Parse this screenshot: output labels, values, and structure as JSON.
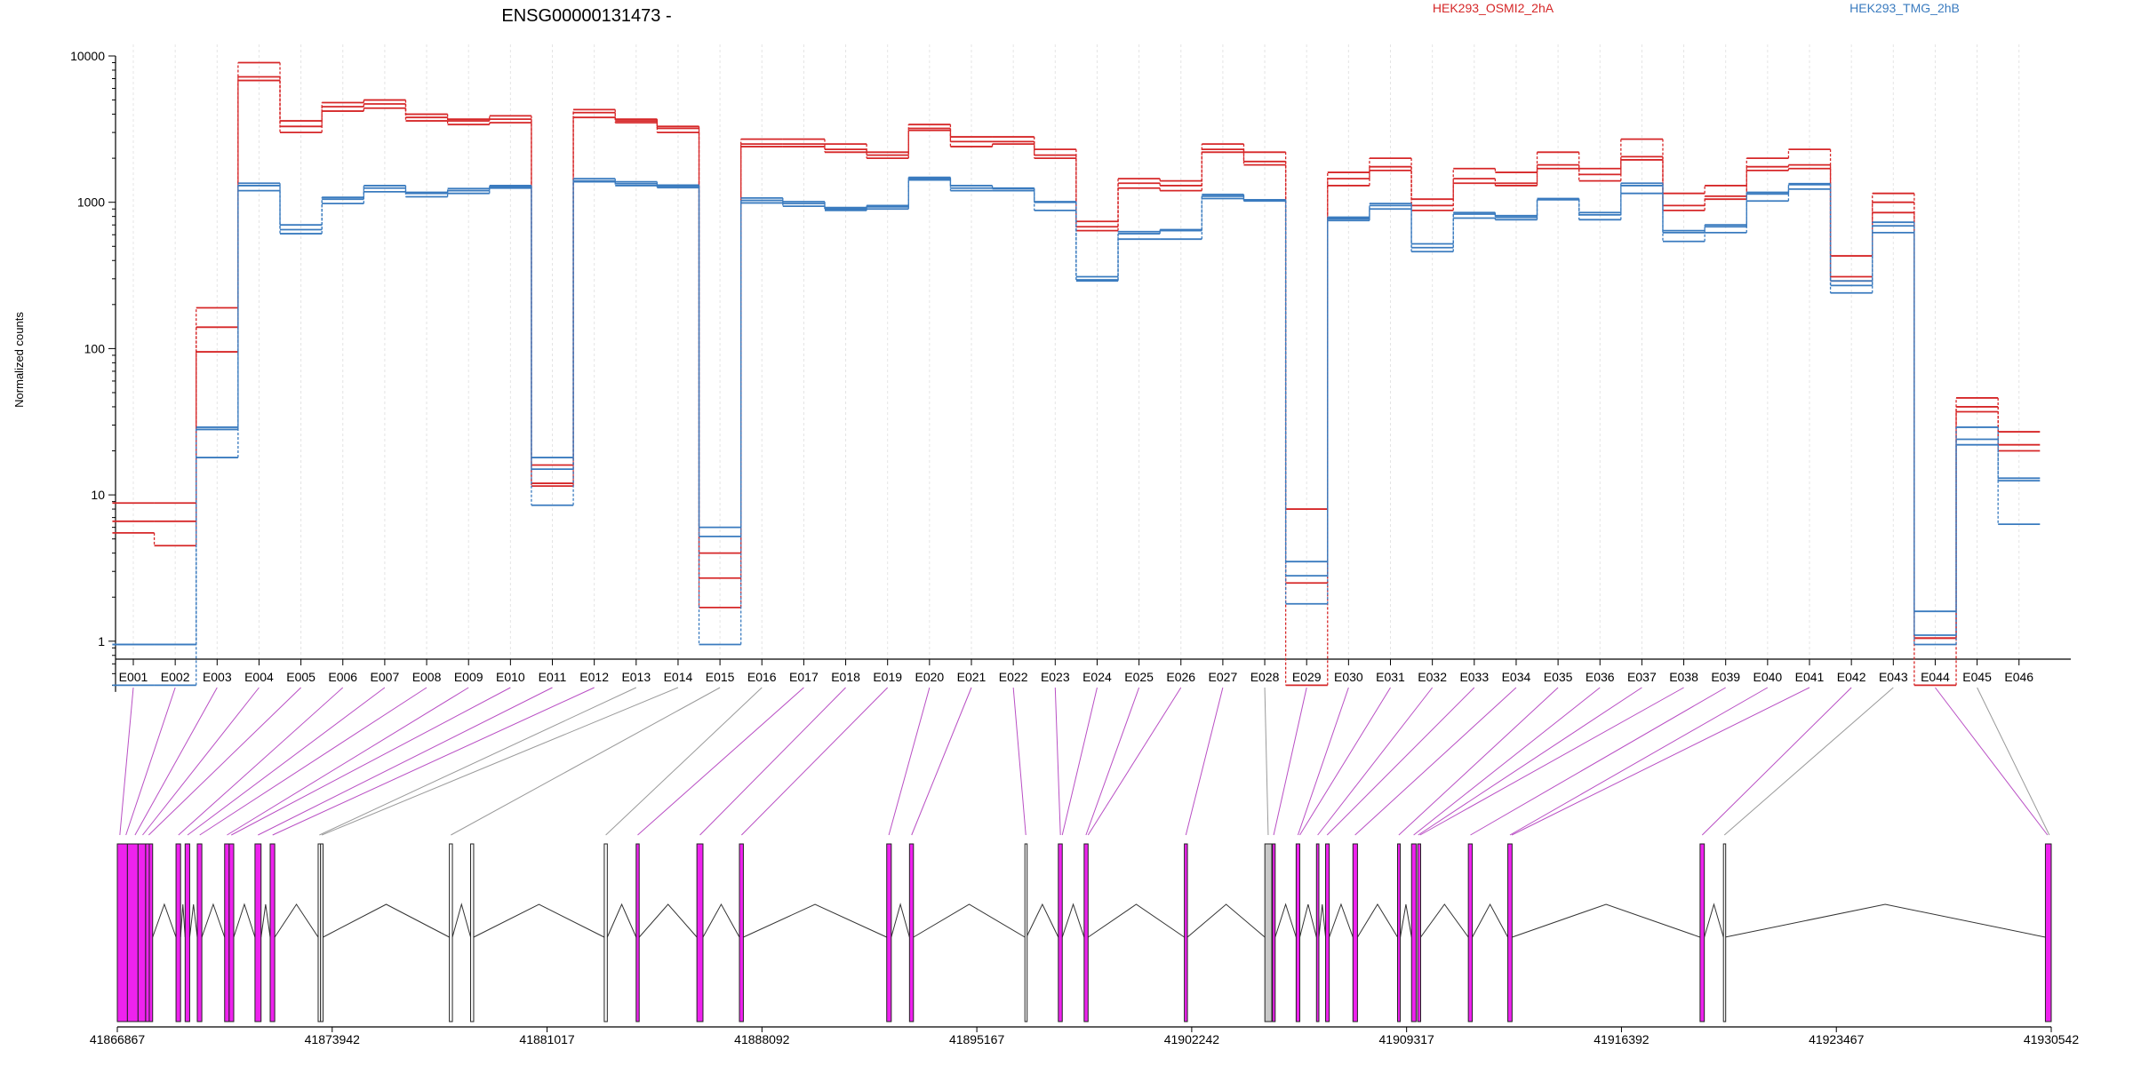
{
  "title": "ENSG00000131473 -",
  "ylabel": "Normalized counts",
  "legend": {
    "items": [
      {
        "label": "HEK293_OSMI2_2hA",
        "color": "#d62728"
      },
      {
        "label": "HEK293_TMG_2hB",
        "color": "#3a7bbf"
      }
    ]
  },
  "colors": {
    "exon_fill": "#ee22ee",
    "connector_magenta": "#b94fc4",
    "connector_gray": "#9a9a9a",
    "noncounted_fill": "#c8c8c8",
    "grid": "#e4e4e4"
  },
  "genomic_axis": {
    "ticks": [
      "41866867",
      "41873942",
      "41881017",
      "41888092",
      "41895167",
      "41902242",
      "41909317",
      "41916392",
      "41923467",
      "41930542"
    ],
    "range": [
      41866867,
      41930542
    ]
  },
  "chart_data": {
    "type": "line",
    "yscale": "log",
    "ylim": [
      0.45,
      10000
    ],
    "yticks": [
      "1",
      "10",
      "100",
      "1000",
      "10000"
    ],
    "ytick_values": [
      1,
      10,
      100,
      1000,
      10000
    ],
    "grid": true,
    "legend_position": "top",
    "categories": [
      "E001",
      "E002",
      "E003",
      "E004",
      "E005",
      "E006",
      "E007",
      "E008",
      "E009",
      "E010",
      "E011",
      "E012",
      "E013",
      "E014",
      "E015",
      "E016",
      "E017",
      "E018",
      "E019",
      "E020",
      "E021",
      "E022",
      "E023",
      "E024",
      "E025",
      "E026",
      "E027",
      "E028",
      "E029",
      "E030",
      "E031",
      "E032",
      "E033",
      "E034",
      "E035",
      "E036",
      "E037",
      "E038",
      "E039",
      "E040",
      "E041",
      "E042",
      "E043",
      "E044",
      "E045",
      "E046"
    ],
    "series": [
      {
        "name": "HEK293_OSMI2_2hA",
        "color": "#d62728",
        "replicate": 1,
        "values": [
          8.8,
          8.8,
          190,
          9000,
          3600,
          4800,
          5000,
          4000,
          3700,
          3900,
          16,
          4300,
          3700,
          3300,
          4,
          2700,
          2700,
          2500,
          2200,
          3400,
          2800,
          2800,
          2300,
          740,
          1450,
          1400,
          2500,
          2200,
          8,
          1600,
          2000,
          1050,
          1700,
          1600,
          2200,
          1700,
          2700,
          1150,
          1300,
          2000,
          2300,
          430,
          1150,
          1.05,
          46,
          27
        ]
      },
      {
        "name": "HEK293_OSMI2_2hA",
        "color": "#d62728",
        "replicate": 2,
        "values": [
          6.6,
          6.6,
          140,
          7200,
          3300,
          4500,
          4700,
          3800,
          3600,
          3700,
          12,
          4100,
          3600,
          3200,
          2.7,
          2500,
          2500,
          2300,
          2100,
          3200,
          2600,
          2600,
          2100,
          680,
          1350,
          1300,
          2300,
          1900,
          2.5,
          1450,
          1750,
          950,
          1450,
          1350,
          1800,
          1550,
          2050,
          950,
          1100,
          1750,
          1800,
          310,
          1000,
          1.05,
          40,
          22
        ]
      },
      {
        "name": "HEK293_OSMI2_2hA",
        "color": "#d62728",
        "replicate": 3,
        "values": [
          5.5,
          4.5,
          95,
          6800,
          3000,
          4200,
          4400,
          3600,
          3400,
          3500,
          11.5,
          3800,
          3500,
          3000,
          1.7,
          2400,
          2400,
          2200,
          2000,
          3100,
          2400,
          2500,
          2000,
          640,
          1250,
          1200,
          2200,
          1800,
          0.5,
          1300,
          1650,
          880,
          1350,
          1300,
          1700,
          1400,
          1950,
          880,
          1050,
          1650,
          1700,
          290,
          850,
          0.5,
          37,
          20
        ]
      },
      {
        "name": "HEK293_TMG_2hB",
        "color": "#3a7bbf",
        "replicate": 1,
        "values": [
          0.95,
          0.95,
          29,
          1350,
          700,
          1080,
          1300,
          1170,
          1240,
          1300,
          18,
          1450,
          1380,
          1310,
          6,
          1070,
          1010,
          920,
          950,
          1480,
          1300,
          1250,
          1010,
          310,
          630,
          650,
          1130,
          1040,
          3.5,
          790,
          980,
          520,
          850,
          810,
          1060,
          850,
          1350,
          640,
          700,
          1170,
          1340,
          290,
          730,
          1.6,
          29,
          13
        ]
      },
      {
        "name": "HEK293_TMG_2hB",
        "color": "#3a7bbf",
        "replicate": 2,
        "values": [
          0.95,
          0.95,
          28,
          1300,
          650,
          1050,
          1250,
          1150,
          1200,
          1280,
          15,
          1400,
          1340,
          1290,
          5.2,
          1030,
          980,
          900,
          930,
          1450,
          1250,
          1240,
          1000,
          295,
          610,
          640,
          1100,
          1030,
          2.8,
          770,
          950,
          490,
          830,
          790,
          1050,
          820,
          1300,
          620,
          680,
          1140,
          1320,
          270,
          690,
          1.1,
          24,
          12.5
        ]
      },
      {
        "name": "HEK293_TMG_2hB",
        "color": "#3a7bbf",
        "replicate": 3,
        "values": [
          0.5,
          0.5,
          18,
          1200,
          610,
          980,
          1180,
          1090,
          1150,
          1250,
          8.5,
          1380,
          1300,
          1260,
          0.95,
          990,
          940,
          880,
          900,
          1420,
          1200,
          1200,
          880,
          290,
          560,
          560,
          1060,
          1020,
          1.8,
          750,
          900,
          460,
          780,
          760,
          1040,
          760,
          1150,
          540,
          620,
          1020,
          1230,
          240,
          620,
          0.95,
          22,
          6.3
        ]
      }
    ]
  },
  "gene_model": {
    "exons": [
      {
        "start": 41866867,
        "end": 41867200,
        "kind": "counted"
      },
      {
        "start": 41867200,
        "end": 41867550,
        "kind": "counted"
      },
      {
        "start": 41867550,
        "end": 41867800,
        "kind": "counted"
      },
      {
        "start": 41867800,
        "end": 41867920,
        "kind": "counted"
      },
      {
        "start": 41867920,
        "end": 41868030,
        "kind": "counted"
      },
      {
        "start": 41868800,
        "end": 41868950,
        "kind": "counted"
      },
      {
        "start": 41869100,
        "end": 41869250,
        "kind": "counted"
      },
      {
        "start": 41869500,
        "end": 41869650,
        "kind": "counted"
      },
      {
        "start": 41870400,
        "end": 41870550,
        "kind": "counted"
      },
      {
        "start": 41870550,
        "end": 41870700,
        "kind": "counted"
      },
      {
        "start": 41871400,
        "end": 41871600,
        "kind": "counted"
      },
      {
        "start": 41871900,
        "end": 41872050,
        "kind": "counted"
      },
      {
        "start": 41873480,
        "end": 41873560,
        "kind": "plain"
      },
      {
        "start": 41873560,
        "end": 41873640,
        "kind": "plain"
      },
      {
        "start": 41877800,
        "end": 41877900,
        "kind": "plain"
      },
      {
        "start": 41878500,
        "end": 41878600,
        "kind": "plain"
      },
      {
        "start": 41882900,
        "end": 41883000,
        "kind": "plain"
      },
      {
        "start": 41883950,
        "end": 41884050,
        "kind": "counted"
      },
      {
        "start": 41885950,
        "end": 41886150,
        "kind": "counted"
      },
      {
        "start": 41887350,
        "end": 41887480,
        "kind": "counted"
      },
      {
        "start": 41892200,
        "end": 41892350,
        "kind": "counted"
      },
      {
        "start": 41892950,
        "end": 41893080,
        "kind": "counted"
      },
      {
        "start": 41896750,
        "end": 41896800,
        "kind": "plain"
      },
      {
        "start": 41897850,
        "end": 41897980,
        "kind": "counted"
      },
      {
        "start": 41898700,
        "end": 41898830,
        "kind": "counted"
      },
      {
        "start": 41902000,
        "end": 41902100,
        "kind": "counted"
      },
      {
        "start": 41904650,
        "end": 41904880,
        "kind": "noncounted"
      },
      {
        "start": 41904900,
        "end": 41904990,
        "kind": "counted"
      },
      {
        "start": 41905680,
        "end": 41905800,
        "kind": "counted"
      },
      {
        "start": 41906350,
        "end": 41906430,
        "kind": "counted"
      },
      {
        "start": 41906650,
        "end": 41906770,
        "kind": "counted"
      },
      {
        "start": 41907550,
        "end": 41907700,
        "kind": "counted"
      },
      {
        "start": 41909020,
        "end": 41909110,
        "kind": "counted"
      },
      {
        "start": 41909480,
        "end": 41909630,
        "kind": "counted"
      },
      {
        "start": 41909680,
        "end": 41909780,
        "kind": "counted"
      },
      {
        "start": 41911350,
        "end": 41911480,
        "kind": "counted"
      },
      {
        "start": 41912650,
        "end": 41912790,
        "kind": "counted"
      },
      {
        "start": 41918980,
        "end": 41919120,
        "kind": "counted"
      },
      {
        "start": 41919750,
        "end": 41919800,
        "kind": "plain"
      },
      {
        "start": 41930350,
        "end": 41930542,
        "kind": "counted"
      }
    ],
    "connectors": [
      {
        "bin": 1,
        "pos": 41866950,
        "kind": "m"
      },
      {
        "bin": 2,
        "pos": 41867150,
        "kind": "m"
      },
      {
        "bin": 3,
        "pos": 41867450,
        "kind": "m"
      },
      {
        "bin": 4,
        "pos": 41867700,
        "kind": "m"
      },
      {
        "bin": 5,
        "pos": 41867900,
        "kind": "m"
      },
      {
        "bin": 6,
        "pos": 41868880,
        "kind": "m"
      },
      {
        "bin": 7,
        "pos": 41869180,
        "kind": "m"
      },
      {
        "bin": 8,
        "pos": 41869580,
        "kind": "m"
      },
      {
        "bin": 9,
        "pos": 41870480,
        "kind": "m"
      },
      {
        "bin": 10,
        "pos": 41870620,
        "kind": "m"
      },
      {
        "bin": 11,
        "pos": 41871500,
        "kind": "m"
      },
      {
        "bin": 12,
        "pos": 41871980,
        "kind": "m"
      },
      {
        "bin": 13,
        "pos": 41873520,
        "kind": "g"
      },
      {
        "bin": 14,
        "pos": 41873600,
        "kind": "g"
      },
      {
        "bin": 15,
        "pos": 41877850,
        "kind": "g"
      },
      {
        "bin": 16,
        "pos": 41882950,
        "kind": "g"
      },
      {
        "bin": 17,
        "pos": 41884000,
        "kind": "m"
      },
      {
        "bin": 18,
        "pos": 41886050,
        "kind": "m"
      },
      {
        "bin": 19,
        "pos": 41887420,
        "kind": "m"
      },
      {
        "bin": 20,
        "pos": 41892270,
        "kind": "m"
      },
      {
        "bin": 21,
        "pos": 41893020,
        "kind": "m"
      },
      {
        "bin": 22,
        "pos": 41896780,
        "kind": "m"
      },
      {
        "bin": 23,
        "pos": 41897920,
        "kind": "m"
      },
      {
        "bin": 24,
        "pos": 41897980,
        "kind": "m"
      },
      {
        "bin": 25,
        "pos": 41898760,
        "kind": "m"
      },
      {
        "bin": 26,
        "pos": 41898830,
        "kind": "m"
      },
      {
        "bin": 27,
        "pos": 41902050,
        "kind": "m"
      },
      {
        "bin": 28,
        "pos": 41904760,
        "kind": "g"
      },
      {
        "bin": 29,
        "pos": 41904940,
        "kind": "m"
      },
      {
        "bin": 30,
        "pos": 41905740,
        "kind": "m"
      },
      {
        "bin": 31,
        "pos": 41905800,
        "kind": "m"
      },
      {
        "bin": 32,
        "pos": 41906390,
        "kind": "m"
      },
      {
        "bin": 33,
        "pos": 41906700,
        "kind": "m"
      },
      {
        "bin": 34,
        "pos": 41907620,
        "kind": "m"
      },
      {
        "bin": 35,
        "pos": 41909060,
        "kind": "m"
      },
      {
        "bin": 36,
        "pos": 41909550,
        "kind": "m"
      },
      {
        "bin": 37,
        "pos": 41909700,
        "kind": "m"
      },
      {
        "bin": 38,
        "pos": 41909760,
        "kind": "m"
      },
      {
        "bin": 39,
        "pos": 41911420,
        "kind": "m"
      },
      {
        "bin": 40,
        "pos": 41912720,
        "kind": "m"
      },
      {
        "bin": 41,
        "pos": 41912780,
        "kind": "m"
      },
      {
        "bin": 42,
        "pos": 41919050,
        "kind": "m"
      },
      {
        "bin": 43,
        "pos": 41919780,
        "kind": "g"
      },
      {
        "bin": 44,
        "pos": 41930420,
        "kind": "m"
      },
      {
        "bin": 45,
        "pos": 41930480,
        "kind": "g"
      }
    ]
  }
}
